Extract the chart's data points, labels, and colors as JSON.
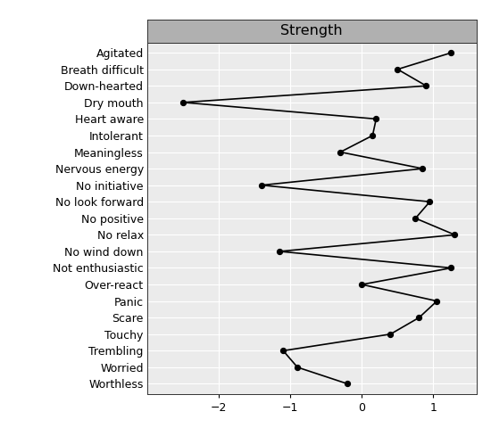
{
  "title": "Strength",
  "labels": [
    "Agitated",
    "Breath difficult",
    "Down-hearted",
    "Dry mouth",
    "Heart aware",
    "Intolerant",
    "Meaningless",
    "Nervous energy",
    "No initiative",
    "No look forward",
    "No positive",
    "No relax",
    "No wind down",
    "Not enthusiastic",
    "Over-react",
    "Panic",
    "Scare",
    "Touchy",
    "Trembling",
    "Worried",
    "Worthless"
  ],
  "values": [
    1.25,
    0.5,
    0.9,
    -2.5,
    0.2,
    0.15,
    -0.3,
    0.85,
    -1.4,
    0.95,
    0.75,
    1.3,
    -1.15,
    1.25,
    0.0,
    1.05,
    0.8,
    0.4,
    -1.1,
    -0.9,
    -0.2
  ],
  "xlim": [
    -3.0,
    1.6
  ],
  "xticks": [
    -2,
    -1,
    0,
    1
  ],
  "background_color": "#ffffff",
  "plot_bg": "#ebebeb",
  "line_color": "#000000",
  "marker_color": "#000000",
  "title_bg": "#b0b0b0",
  "font_size": 9.0,
  "title_font_size": 11.5
}
